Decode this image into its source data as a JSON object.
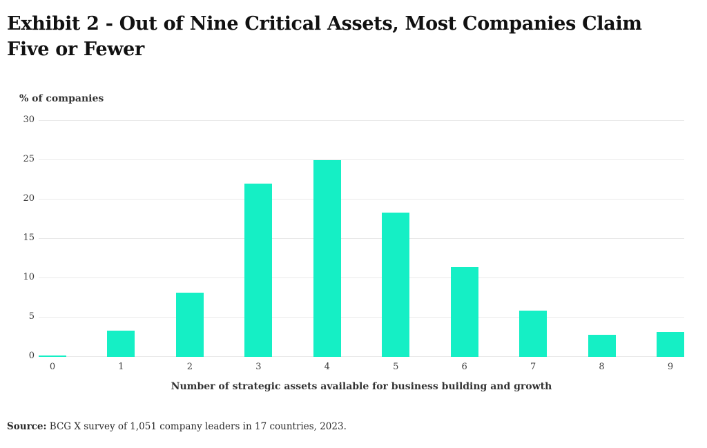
{
  "title_lines": [
    "Exhibit 2 - Out of Nine Critical Assets, Most Companies Claim",
    "Five or Fewer"
  ],
  "chart_data": {
    "type": "bar",
    "title": "Exhibit 2 - Out of Nine Critical Assets, Most Companies Claim Five or Fewer",
    "categories": [
      "0",
      "1",
      "2",
      "3",
      "4",
      "5",
      "6",
      "7",
      "8",
      "9"
    ],
    "values": [
      0.2,
      3.3,
      8.2,
      22,
      25,
      18.3,
      11.4,
      5.9,
      2.8,
      3.2
    ],
    "ylabel": "% of companies",
    "xlabel": "Number of strategic assets available for business building and growth",
    "ylim": [
      0,
      30
    ],
    "yticks": [
      0,
      5,
      10,
      15,
      20,
      25,
      30
    ],
    "grid": true,
    "legend": false
  },
  "source": {
    "label": "Source:",
    "text": " BCG X survey of 1,051 company leaders in 17 countries, 2023."
  },
  "colors": {
    "bar": "#15efc5",
    "gridline": "#e9e9e9",
    "axis_text": "#3d3d3d",
    "title_text": "#111111",
    "background": "#ffffff"
  }
}
